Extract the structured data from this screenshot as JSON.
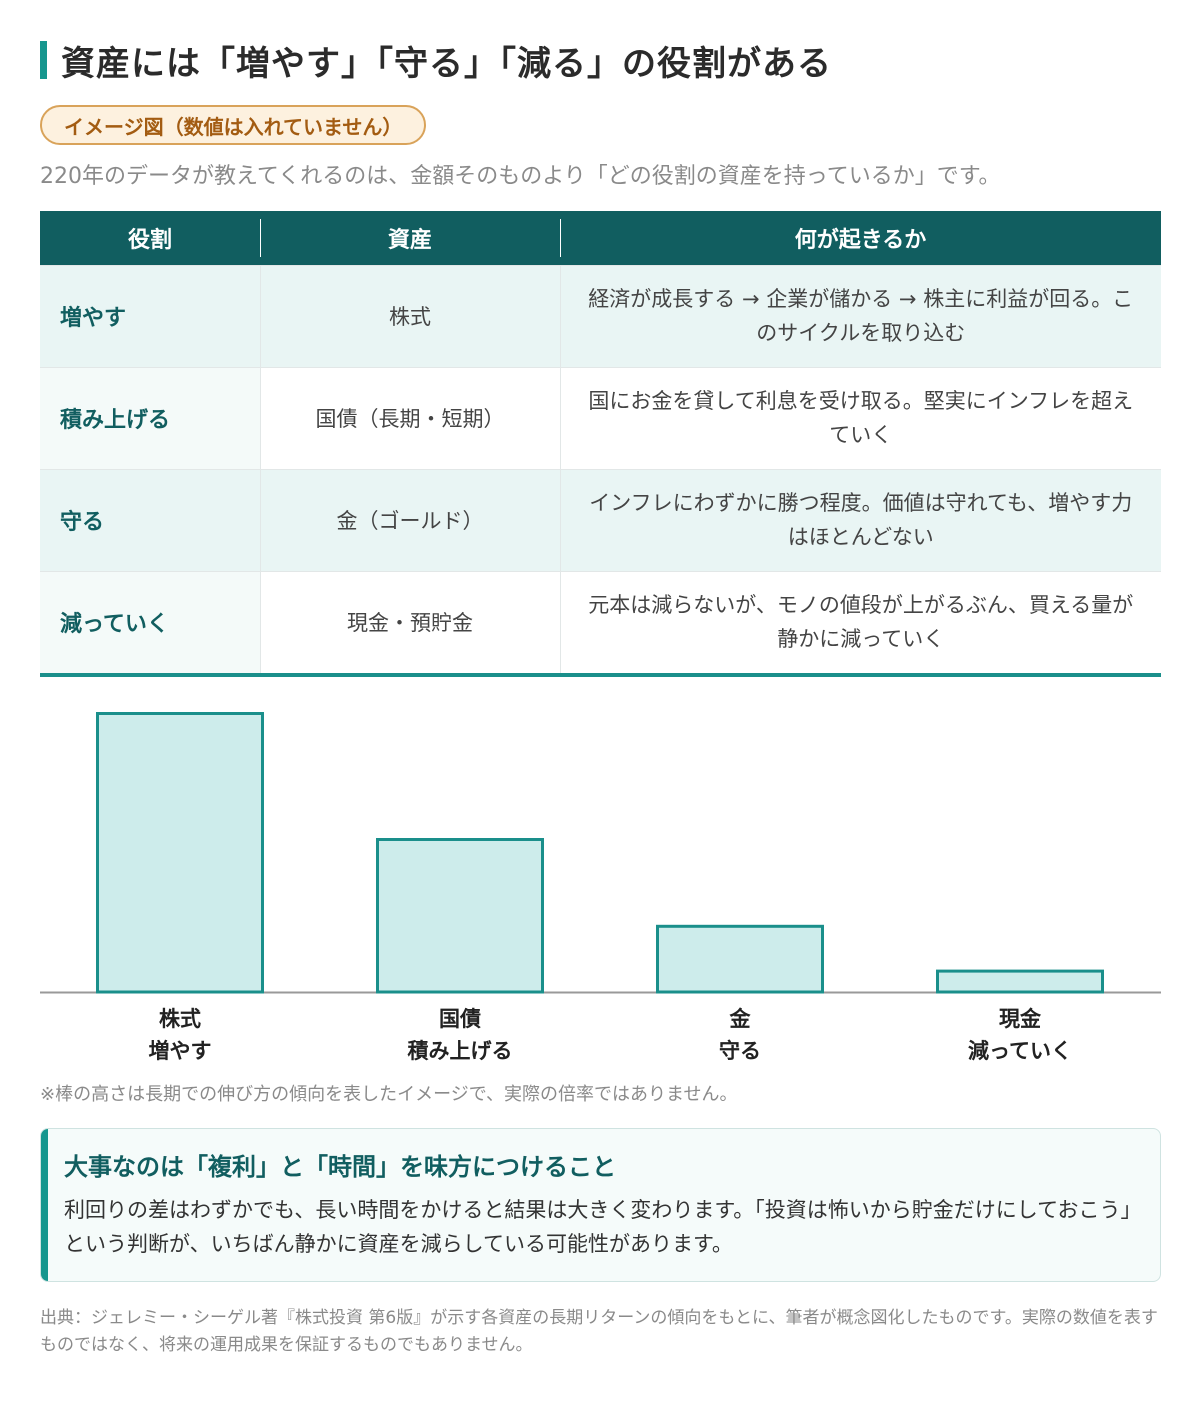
{
  "title": "資産には「増やす」「守る」「減る」の役割がある",
  "badge": "イメージ図（数値は入れていません）",
  "lead": "220年のデータが教えてくれるのは、金額そのものより「どの役割の資産を持っているか」です。",
  "table": {
    "headers": [
      "役割",
      "資産",
      "何が起きるか"
    ],
    "rows": [
      {
        "role": "増やす",
        "asset": "株式",
        "effect": "経済が成長する → 企業が儲かる → 株主に利益が回る。このサイクルを取り込む"
      },
      {
        "role": "積み上げる",
        "asset": "国債（長期・短期）",
        "effect": "国にお金を貸して利息を受け取る。堅実にインフレを超えていく"
      },
      {
        "role": "守る",
        "asset": "金（ゴールド）",
        "effect": "インフレにわずかに勝つ程度。価値は守れても、増やす力はほとんどない"
      },
      {
        "role": "減っていく",
        "asset": "現金・預貯金",
        "effect": "元本は減らないが、モノの値段が上がるぶん、買える量が静かに減っていく"
      }
    ]
  },
  "chart_data": {
    "type": "bar",
    "title": "",
    "xlabel": "",
    "ylabel": "",
    "categories": [
      {
        "asset": "株式",
        "role": "増やす"
      },
      {
        "asset": "国債",
        "role": "積み上げる"
      },
      {
        "asset": "金",
        "role": "守る"
      },
      {
        "asset": "現金",
        "role": "減っていく"
      }
    ],
    "values": [
      100,
      55,
      24,
      8
    ],
    "ylim": [
      0,
      100
    ],
    "grid": false,
    "legend": "none",
    "colors": {
      "fill": "#cdeceb",
      "stroke": "#1a8f8b",
      "axis": "#999999"
    }
  },
  "note": "※棒の高さは長期での伸び方の傾向を表したイメージで、実際の倍率ではありません。",
  "callout": {
    "title": "大事なのは「複利」と「時間」を味方につけること",
    "body": "利回りの差はわずかでも、長い時間をかけると結果は大きく変わります。「投資は怖いから貯金だけにしておこう」という判断が、いちばん静かに資産を減らしている可能性があります。"
  },
  "source": "出典：ジェレミー・シーゲル著『株式投資 第6版』が示す各資産の長期リターンの傾向をもとに、筆者が概念図化したものです。実際の数値を表すものではなく、将来の運用成果を保証するものでもありません。"
}
